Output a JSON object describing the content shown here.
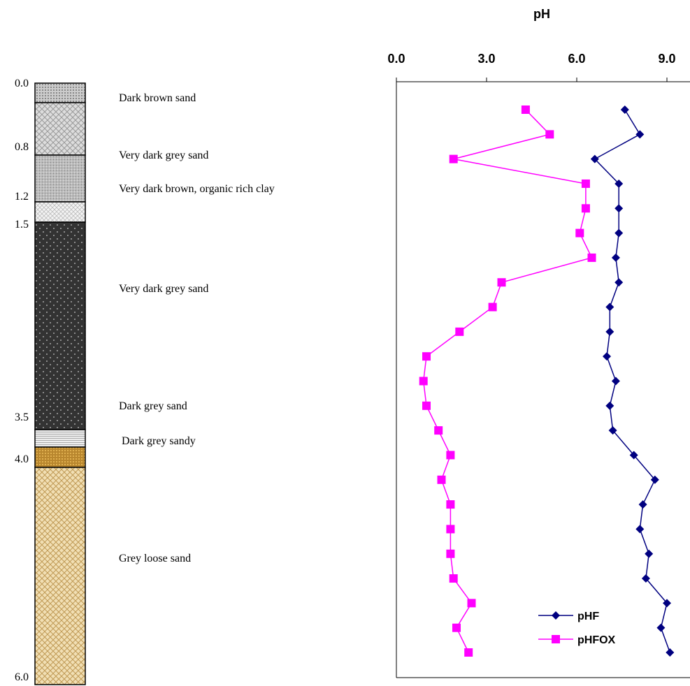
{
  "profile": {
    "depth_labels": [
      "0.0",
      "0.8",
      "1.2",
      "1.5",
      "3.5",
      "4.0",
      "6.0"
    ],
    "descriptions": [
      "Dark brown sand",
      "Very dark grey sand",
      "Very dark brown, organic rich clay",
      "Very dark grey sand",
      "Dark grey sand",
      "Dark grey sandy",
      "Grey loose sand"
    ]
  },
  "chart_data": {
    "type": "line",
    "title": "pH",
    "xlim": [
      0,
      10
    ],
    "xticks": [
      {
        "value": 0,
        "label": "0.0"
      },
      {
        "value": 3,
        "label": "3.0"
      },
      {
        "value": 6,
        "label": "6.0"
      },
      {
        "value": 9,
        "label": "9.0"
      }
    ],
    "series": [
      {
        "name": "pHF",
        "color": "#000080",
        "marker": "diamond",
        "values": [
          7.6,
          8.1,
          6.6,
          7.4,
          7.4,
          7.4,
          7.3,
          7.4,
          7.1,
          7.1,
          7.0,
          7.3,
          7.1,
          7.2,
          7.9,
          8.6,
          8.2,
          8.1,
          8.4,
          8.3,
          9.0,
          8.8,
          9.1
        ]
      },
      {
        "name": "pHFOX",
        "color": "#ff00ff",
        "marker": "square",
        "values": [
          4.3,
          5.1,
          1.9,
          6.3,
          6.3,
          6.1,
          6.5,
          3.5,
          3.2,
          2.1,
          1.0,
          0.9,
          1.0,
          1.4,
          1.8,
          1.5,
          1.8,
          1.8,
          1.8,
          1.9,
          2.5,
          2.0,
          2.4
        ]
      }
    ]
  }
}
